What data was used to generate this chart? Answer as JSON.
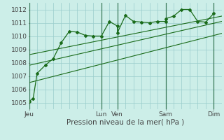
{
  "xlabel": "Pression niveau de la mer( hPa )",
  "bg_color": "#cceee8",
  "grid_color": "#99cccc",
  "line_color": "#1a6b1a",
  "ylim": [
    1004.5,
    1012.5
  ],
  "xlim": [
    0,
    96
  ],
  "yticks": [
    1005,
    1006,
    1007,
    1008,
    1009,
    1010,
    1011,
    1012
  ],
  "xtick_positions": [
    0,
    36,
    44,
    68,
    92
  ],
  "xtick_labels": [
    "Jeu",
    "Lun",
    "Ven",
    "Sam",
    "Dim"
  ],
  "day_sep_x": [
    0,
    36,
    44,
    68,
    92
  ],
  "series_main": [
    [
      0,
      1005.1
    ],
    [
      2,
      1005.3
    ],
    [
      4,
      1007.2
    ],
    [
      8,
      1007.8
    ],
    [
      12,
      1008.3
    ],
    [
      16,
      1009.5
    ],
    [
      20,
      1010.35
    ],
    [
      24,
      1010.3
    ],
    [
      28,
      1010.05
    ],
    [
      32,
      1010.0
    ],
    [
      36,
      1010.0
    ],
    [
      40,
      1011.1
    ],
    [
      44,
      1010.75
    ],
    [
      44,
      1010.25
    ],
    [
      48,
      1011.55
    ],
    [
      52,
      1011.1
    ],
    [
      56,
      1011.05
    ],
    [
      60,
      1011.0
    ],
    [
      64,
      1011.1
    ],
    [
      68,
      1011.1
    ],
    [
      68,
      1011.3
    ],
    [
      72,
      1011.5
    ],
    [
      76,
      1012.0
    ],
    [
      80,
      1012.0
    ],
    [
      84,
      1011.1
    ],
    [
      88,
      1011.05
    ],
    [
      92,
      1011.7
    ]
  ],
  "linear1": [
    [
      0,
      1008.6
    ],
    [
      96,
      1011.5
    ]
  ],
  "linear2": [
    [
      0,
      1007.8
    ],
    [
      96,
      1011.1
    ]
  ],
  "linear3": [
    [
      0,
      1006.5
    ],
    [
      96,
      1010.2
    ]
  ]
}
